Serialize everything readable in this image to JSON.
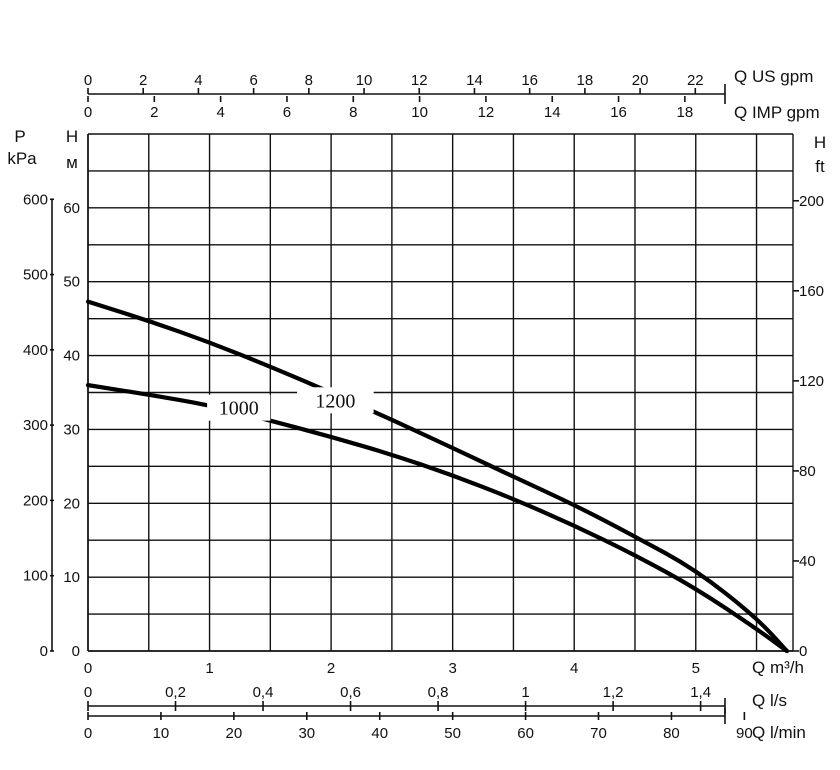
{
  "chart_data": {
    "type": "line",
    "x": {
      "label": "Q m³/h",
      "range": [
        0,
        5.8
      ],
      "ticks": [
        "0",
        "1",
        "2",
        "3",
        "4",
        "5"
      ]
    },
    "y": {
      "label_top": "H",
      "label_unit": "м",
      "range": [
        0,
        70
      ],
      "ticks": [
        "0",
        "10",
        "20",
        "30",
        "40",
        "50",
        "60"
      ]
    },
    "y_pressure": {
      "label_top": "P",
      "label_unit": "kPa",
      "ticks": [
        "0",
        "100",
        "200",
        "300",
        "400",
        "500",
        "600"
      ]
    },
    "y_feet": {
      "label_top": "H",
      "label_unit": "ft",
      "ticks": [
        "0",
        "40",
        "80",
        "120",
        "160",
        "200"
      ]
    },
    "top_axis_us": {
      "label": "Q US gpm",
      "ticks": [
        "0",
        "2",
        "4",
        "6",
        "8",
        "10",
        "12",
        "14",
        "16",
        "18",
        "20",
        "22"
      ]
    },
    "top_axis_imp": {
      "label": "Q IMP gpm",
      "ticks": [
        "0",
        "2",
        "4",
        "6",
        "8",
        "10",
        "12",
        "14",
        "16",
        "18"
      ]
    },
    "bottom_axis_ls": {
      "label": "Q l/s",
      "ticks": [
        "0",
        "0,2",
        "0,4",
        "0,6",
        "0,8",
        "1",
        "1,2",
        "1,4"
      ]
    },
    "bottom_axis_lmin": {
      "label": "Q l/min",
      "ticks": [
        "0",
        "10",
        "20",
        "30",
        "40",
        "50",
        "60",
        "70",
        "80",
        "90"
      ]
    },
    "series": [
      {
        "name": "1200",
        "points": [
          [
            0,
            47.3
          ],
          [
            0.5,
            44.7
          ],
          [
            1.0,
            41.8
          ],
          [
            1.5,
            38.5
          ],
          [
            2.0,
            35.0
          ],
          [
            2.5,
            31.3
          ],
          [
            3.0,
            27.5
          ],
          [
            3.5,
            23.6
          ],
          [
            4.0,
            19.8
          ],
          [
            4.5,
            15.5
          ],
          [
            5.0,
            11.0
          ],
          [
            5.5,
            4.5
          ],
          [
            5.75,
            0
          ]
        ]
      },
      {
        "name": "1000",
        "points": [
          [
            0,
            36.0
          ],
          [
            0.5,
            34.7
          ],
          [
            1.0,
            33.3
          ],
          [
            1.5,
            31.2
          ],
          [
            2.0,
            29.0
          ],
          [
            2.5,
            26.6
          ],
          [
            3.0,
            23.8
          ],
          [
            3.5,
            20.6
          ],
          [
            4.0,
            17.0
          ],
          [
            4.5,
            13.0
          ],
          [
            5.0,
            8.5
          ],
          [
            5.5,
            3.0
          ],
          [
            5.75,
            0
          ]
        ]
      }
    ],
    "grid": true
  }
}
